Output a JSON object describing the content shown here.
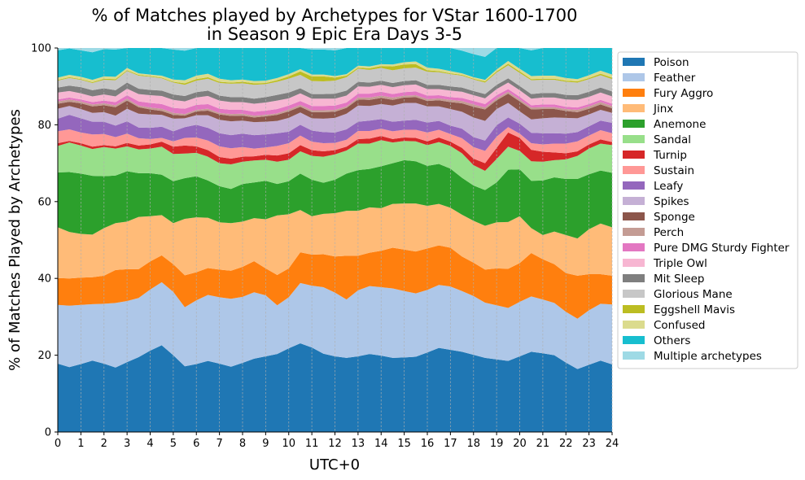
{
  "chart_data": {
    "type": "area",
    "title": "% of Matches played by Archetypes for VStar 1600-1700",
    "subtitle": "in Season 9 Epic Era Days 3-5",
    "xlabel": "UTC+0",
    "ylabel": "% of Matches Played by Archetypes",
    "xlim": [
      0,
      24
    ],
    "ylim": [
      0,
      100
    ],
    "x_ticks": [
      0,
      1,
      2,
      3,
      4,
      5,
      6,
      7,
      8,
      9,
      10,
      11,
      12,
      13,
      14,
      15,
      16,
      17,
      18,
      19,
      20,
      21,
      22,
      23,
      24
    ],
    "y_ticks": [
      0,
      20,
      40,
      60,
      80,
      100
    ],
    "grid": "vertical-dashed",
    "legend_position": "right-outside",
    "x": [
      0,
      0.5,
      1,
      1.5,
      2,
      2.5,
      3,
      3.5,
      4,
      4.5,
      5,
      5.5,
      6,
      6.5,
      7,
      7.5,
      8,
      8.5,
      9,
      9.5,
      10,
      10.5,
      11,
      11.5,
      12,
      12.5,
      13,
      13.5,
      14,
      14.5,
      15,
      15.5,
      16,
      16.5,
      17,
      17.5,
      18,
      18.5,
      19,
      19.5,
      20,
      20.5,
      21,
      21.5,
      22,
      22.5,
      23,
      23.5,
      24
    ],
    "series": [
      {
        "name": "Poison",
        "color": "#1f77b4",
        "values": [
          17.8,
          16.9,
          17.7,
          18.6,
          17.8,
          16.8,
          18.2,
          19.5,
          21.2,
          22.6,
          20.0,
          17.1,
          17.7,
          18.5,
          17.8,
          17.0,
          18.0,
          19.1,
          19.7,
          20.3,
          21.8,
          23.1,
          22.0,
          20.4,
          19.7,
          19.3,
          19.7,
          20.3,
          19.9,
          19.3,
          19.4,
          19.6,
          20.7,
          21.9,
          21.4,
          20.9,
          20.1,
          19.3,
          18.9,
          18.5,
          19.7,
          20.9,
          20.5,
          20.0,
          18.1,
          16.4,
          17.5,
          18.6,
          17.6
        ]
      },
      {
        "name": "Feather",
        "color": "#aec7e8",
        "values": [
          15.3,
          16.0,
          15.4,
          14.7,
          15.6,
          16.8,
          15.9,
          15.4,
          15.9,
          16.4,
          16.5,
          15.4,
          16.6,
          17.2,
          17.3,
          17.7,
          17.2,
          17.3,
          15.9,
          12.7,
          13.3,
          15.7,
          16.1,
          17.3,
          16.6,
          15.2,
          17.2,
          17.7,
          17.8,
          18.1,
          17.3,
          16.5,
          16.3,
          16.4,
          16.5,
          15.8,
          15.3,
          14.4,
          14.1,
          13.8,
          14.2,
          14.4,
          14.0,
          13.6,
          13.2,
          13.1,
          14.2,
          14.8,
          15.6
        ]
      },
      {
        "name": "Fury Aggro",
        "color": "#ff7f0e",
        "values": [
          7.0,
          7.1,
          7.1,
          7.0,
          7.3,
          8.6,
          8.3,
          7.5,
          7.3,
          7.0,
          7.2,
          8.3,
          7.3,
          7.0,
          7.2,
          7.3,
          7.8,
          8.1,
          7.0,
          7.9,
          7.5,
          8.0,
          8.1,
          8.6,
          9.4,
          11.4,
          9.0,
          8.7,
          9.5,
          10.6,
          10.8,
          10.9,
          10.8,
          10.3,
          10.1,
          9.0,
          8.7,
          8.6,
          9.6,
          10.2,
          10.1,
          11.3,
          10.5,
          10.1,
          10.1,
          11.2,
          9.4,
          7.7,
          7.5
        ]
      },
      {
        "name": "Jinx",
        "color": "#ffbb78",
        "values": [
          13.2,
          12.1,
          11.4,
          11.1,
          12.4,
          12.2,
          12.4,
          13.6,
          11.8,
          10.5,
          10.7,
          14.7,
          14.3,
          13.1,
          12.3,
          12.4,
          11.8,
          11.2,
          12.8,
          15.5,
          14.1,
          11.0,
          10.0,
          10.5,
          11.3,
          11.7,
          11.7,
          11.8,
          11.1,
          11.4,
          12.0,
          12.5,
          11.1,
          10.8,
          10.4,
          10.9,
          10.9,
          11.4,
          12.0,
          12.2,
          12.2,
          6.5,
          6.3,
          8.5,
          9.9,
          9.7,
          11.7,
          13.2,
          12.6
        ]
      },
      {
        "name": "Anemone",
        "color": "#2ca02c",
        "values": [
          14.3,
          15.6,
          15.7,
          15.3,
          13.5,
          12.4,
          13.1,
          11.4,
          11.2,
          10.5,
          10.9,
          10.6,
          10.7,
          9.7,
          9.4,
          8.9,
          9.8,
          9.3,
          10.0,
          8.2,
          8.6,
          9.5,
          9.5,
          8.1,
          8.7,
          9.7,
          10.6,
          10.0,
          10.9,
          10.6,
          11.3,
          11.0,
          10.4,
          10.4,
          10.2,
          9.6,
          9.2,
          9.3,
          10.4,
          13.6,
          12.2,
          12.3,
          14.2,
          14.1,
          14.6,
          15.5,
          14.3,
          13.8,
          14.2
        ]
      },
      {
        "name": "Sandal",
        "color": "#98df8a",
        "values": [
          6.9,
          7.7,
          7.3,
          7.0,
          7.6,
          7.0,
          6.5,
          6.2,
          6.4,
          7.3,
          7.1,
          6.4,
          6.1,
          6.2,
          6.0,
          6.4,
          5.8,
          5.7,
          5.5,
          5.8,
          5.6,
          5.8,
          6.2,
          6.8,
          6.6,
          6.0,
          6.9,
          6.6,
          6.8,
          5.4,
          5.0,
          5.2,
          5.4,
          5.7,
          5.9,
          6.4,
          5.3,
          5.0,
          6.1,
          6.0,
          4.8,
          5.1,
          4.9,
          4.5,
          5.1,
          6.0,
          6.7,
          7.0,
          7.2
        ]
      },
      {
        "name": "Turnip",
        "color": "#d62728",
        "values": [
          0.7,
          0.4,
          0.6,
          0.6,
          0.5,
          0.6,
          0.9,
          1.0,
          1.1,
          1.3,
          1.9,
          2.1,
          1.7,
          1.7,
          1.6,
          1.5,
          1.3,
          1.1,
          1.3,
          1.6,
          1.7,
          1.6,
          1.5,
          1.4,
          1.1,
          1.0,
          1.2,
          1.3,
          1.1,
          0.9,
          0.9,
          0.9,
          1.0,
          1.2,
          1.1,
          1.4,
          1.7,
          2.0,
          2.9,
          3.7,
          3.4,
          3.0,
          2.6,
          2.0,
          1.6,
          1.2,
          1.1,
          1.1,
          0.8
        ]
      },
      {
        "name": "Sustain",
        "color": "#ff9896",
        "values": [
          3.1,
          3.0,
          2.8,
          3.2,
          2.9,
          2.4,
          2.4,
          1.9,
          1.4,
          1.0,
          1.4,
          2.0,
          2.3,
          2.5,
          2.8,
          2.7,
          2.5,
          2.0,
          1.9,
          2.5,
          2.6,
          2.5,
          2.2,
          2.1,
          1.9,
          1.8,
          2.1,
          2.0,
          1.9,
          2.0,
          2.0,
          2.1,
          2.3,
          2.0,
          2.0,
          2.5,
          3.0,
          3.2,
          2.9,
          1.4,
          1.1,
          1.7,
          1.9,
          2.3,
          2.5,
          2.6,
          2.3,
          2.4,
          2.3
        ]
      },
      {
        "name": "Leafy",
        "color": "#9467bd",
        "values": [
          3.3,
          3.8,
          3.7,
          3.3,
          3.2,
          3.0,
          3.2,
          2.8,
          2.9,
          2.9,
          2.6,
          2.8,
          3.3,
          3.3,
          3.4,
          3.4,
          3.5,
          3.5,
          3.4,
          3.3,
          3.0,
          2.8,
          2.9,
          2.9,
          2.7,
          2.7,
          2.4,
          2.7,
          2.5,
          2.5,
          2.4,
          2.6,
          2.6,
          2.3,
          2.2,
          2.5,
          2.6,
          2.7,
          3.0,
          2.5,
          2.6,
          2.7,
          2.9,
          2.7,
          2.6,
          2.4,
          2.4,
          2.5,
          2.7
        ]
      },
      {
        "name": "Spikes",
        "color": "#c5b0d5",
        "values": [
          2.6,
          2.3,
          2.4,
          2.3,
          2.5,
          2.6,
          3.3,
          3.6,
          3.5,
          3.1,
          3.3,
          2.3,
          2.5,
          3.3,
          3.5,
          3.6,
          3.4,
          3.4,
          3.3,
          3.2,
          3.6,
          3.2,
          3.2,
          3.5,
          3.8,
          4.1,
          4.2,
          3.8,
          3.9,
          4.2,
          4.6,
          4.4,
          4.2,
          3.8,
          4.3,
          4.4,
          5.1,
          5.1,
          4.2,
          3.8,
          3.2,
          3.5,
          3.9,
          4.1,
          4.1,
          3.6,
          3.1,
          2.8,
          2.6
        ]
      },
      {
        "name": "Sponge",
        "color": "#8c564b",
        "values": [
          1.3,
          1.1,
          1.5,
          1.7,
          1.8,
          2.2,
          2.1,
          1.7,
          1.3,
          1.0,
          1.0,
          0.7,
          1.0,
          1.2,
          1.4,
          1.4,
          1.3,
          1.2,
          1.4,
          1.6,
          1.7,
          1.5,
          1.6,
          1.7,
          1.6,
          1.5,
          1.6,
          1.6,
          1.6,
          1.5,
          1.4,
          1.5,
          1.4,
          1.6,
          1.8,
          2.2,
          2.8,
          3.0,
          2.3,
          2.4,
          2.6,
          2.6,
          2.4,
          2.2,
          1.8,
          1.6,
          1.5,
          1.4,
          1.2
        ]
      },
      {
        "name": "Perch",
        "color": "#c49c94",
        "values": [
          0.6,
          0.6,
          0.5,
          0.5,
          0.5,
          0.5,
          0.5,
          0.4,
          0.5,
          0.6,
          0.5,
          0.4,
          0.4,
          0.5,
          0.4,
          0.5,
          0.5,
          0.5,
          0.4,
          0.4,
          0.5,
          0.5,
          0.5,
          0.5,
          0.5,
          0.4,
          0.5,
          0.6,
          0.6,
          0.6,
          0.5,
          0.5,
          0.5,
          0.5,
          0.6,
          0.6,
          0.6,
          0.5,
          0.5,
          0.5,
          0.5,
          0.5,
          0.5,
          0.5,
          0.5,
          0.6,
          0.6,
          0.6,
          0.6
        ]
      },
      {
        "name": "Pure DMG Sturdy Fighter",
        "color": "#e377c2",
        "values": [
          0.5,
          0.5,
          0.5,
          0.6,
          0.7,
          0.8,
          0.9,
          1.1,
          1.2,
          1.2,
          1.3,
          1.4,
          1.3,
          1.2,
          1.1,
          1.1,
          1.0,
          1.0,
          1.1,
          1.1,
          1.0,
          1.0,
          1.1,
          1.1,
          1.1,
          1.0,
          1.0,
          1.0,
          1.0,
          0.9,
          0.9,
          1.0,
          0.9,
          0.8,
          0.7,
          0.8,
          0.9,
          0.9,
          0.8,
          0.7,
          0.7,
          0.6,
          0.7,
          0.7,
          0.6,
          0.6,
          0.6,
          0.6,
          0.6
        ]
      },
      {
        "name": "Triple Owl",
        "color": "#f7b6d2",
        "values": [
          1.8,
          1.7,
          1.6,
          1.5,
          1.6,
          1.5,
          1.7,
          1.9,
          2.0,
          2.1,
          2.1,
          1.9,
          1.9,
          2.1,
          2.1,
          2.0,
          2.0,
          2.1,
          2.1,
          2.2,
          1.9,
          2.0,
          1.9,
          1.9,
          1.8,
          1.8,
          1.9,
          1.8,
          1.8,
          1.8,
          1.8,
          1.8,
          1.7,
          1.6,
          1.7,
          1.6,
          1.5,
          1.5,
          1.6,
          1.7,
          1.7,
          1.7,
          1.8,
          1.8,
          1.9,
          2.0,
          1.9,
          1.9,
          1.9
        ]
      },
      {
        "name": "Mit Sleep",
        "color": "#7f7f7f",
        "values": [
          1.3,
          1.4,
          1.6,
          1.6,
          1.6,
          1.6,
          1.6,
          1.4,
          1.4,
          1.4,
          1.4,
          1.4,
          1.4,
          1.4,
          1.3,
          1.3,
          1.3,
          1.3,
          1.4,
          1.5,
          1.5,
          1.3,
          1.2,
          1.2,
          1.3,
          1.3,
          1.2,
          1.1,
          1.1,
          1.1,
          1.1,
          1.1,
          1.1,
          1.1,
          1.1,
          1.1,
          1.1,
          1.1,
          1.1,
          1.1,
          1.1,
          1.2,
          1.2,
          1.2,
          1.2,
          1.2,
          1.3,
          1.3,
          1.3
        ]
      },
      {
        "name": "Glorious Mane",
        "color": "#c7c7c7",
        "values": [
          1.8,
          2.0,
          1.9,
          1.9,
          2.2,
          2.6,
          3.0,
          3.4,
          3.4,
          3.2,
          3.1,
          2.9,
          3.0,
          3.1,
          3.3,
          3.5,
          3.6,
          3.6,
          3.4,
          3.4,
          3.6,
          3.5,
          3.4,
          3.3,
          3.4,
          3.5,
          3.4,
          3.3,
          3.3,
          3.3,
          3.3,
          3.3,
          3.4,
          3.3,
          3.2,
          3.1,
          3.0,
          3.0,
          3.2,
          3.4,
          3.4,
          3.6,
          3.4,
          3.4,
          3.4,
          3.3,
          3.3,
          3.2,
          3.2
        ]
      },
      {
        "name": "Eggshell Mavis",
        "color": "#bcbd22",
        "values": [
          0.2,
          0.2,
          0.2,
          0.2,
          0.3,
          0.3,
          0.2,
          0.2,
          0.2,
          0.2,
          0.2,
          0.4,
          0.4,
          0.4,
          0.3,
          0.3,
          0.4,
          0.4,
          0.3,
          0.4,
          0.6,
          0.9,
          1.2,
          1.3,
          0.8,
          0.4,
          0.3,
          0.4,
          0.5,
          1.0,
          1.0,
          0.9,
          0.4,
          0.3,
          0.2,
          0.2,
          0.2,
          0.3,
          0.3,
          0.4,
          0.4,
          0.3,
          0.3,
          0.3,
          0.3,
          0.3,
          0.3,
          0.4,
          0.4
        ]
      },
      {
        "name": "Confused",
        "color": "#dbdb8d",
        "values": [
          0.6,
          0.6,
          0.6,
          0.6,
          0.6,
          0.6,
          0.6,
          0.4,
          0.4,
          0.5,
          0.6,
          0.8,
          0.9,
          0.9,
          0.8,
          0.6,
          0.6,
          0.6,
          0.6,
          0.6,
          0.6,
          0.6,
          0.5,
          0.5,
          0.4,
          0.4,
          0.5,
          0.5,
          0.5,
          0.5,
          0.6,
          0.7,
          0.7,
          0.6,
          0.6,
          0.4,
          0.4,
          0.4,
          0.5,
          0.7,
          0.7,
          0.8,
          0.8,
          0.8,
          0.7,
          0.6,
          0.7,
          0.8,
          0.8
        ]
      },
      {
        "name": "Others",
        "color": "#17becf",
        "values": [
          7.1,
          6.9,
          6.9,
          7.2,
          7.1,
          7.1,
          6.9,
          7.3,
          7.4,
          7.7,
          7.8,
          7.7,
          7.7,
          7.0,
          8.2,
          8.8,
          8.7,
          8.6,
          8.8,
          8.7,
          7.7,
          6.6,
          6.5,
          6.5,
          6.7,
          6.9,
          6.4,
          6.3,
          6.1,
          5.7,
          5.4,
          5.5,
          5.9,
          6.0,
          6.7,
          5.9,
          6.0,
          6.0,
          6.2,
          6.5,
          6.5,
          6.7,
          7.4,
          7.9,
          8.1,
          8.1,
          7.8,
          7.6,
          6.9
        ]
      },
      {
        "name": "Multiple archetypes",
        "color": "#9edae5",
        "values": [
          1.9,
          2.1,
          2.5,
          2.7,
          2.8,
          2.8,
          3.1,
          3.2,
          3.1,
          3.0,
          2.8,
          2.8,
          2.8,
          2.7,
          2.5,
          2.4,
          2.3,
          2.4,
          2.4,
          2.4,
          2.4,
          2.4,
          2.4,
          2.6,
          2.6,
          2.6,
          2.5,
          2.2,
          2.0,
          2.3,
          2.6,
          2.8,
          2.1,
          1.6,
          2.2,
          2.7,
          3.5,
          4.0,
          3.5,
          2.6,
          2.4,
          2.8,
          2.3,
          1.6,
          1.7,
          1.9,
          1.5,
          1.1,
          1.9
        ]
      }
    ]
  }
}
